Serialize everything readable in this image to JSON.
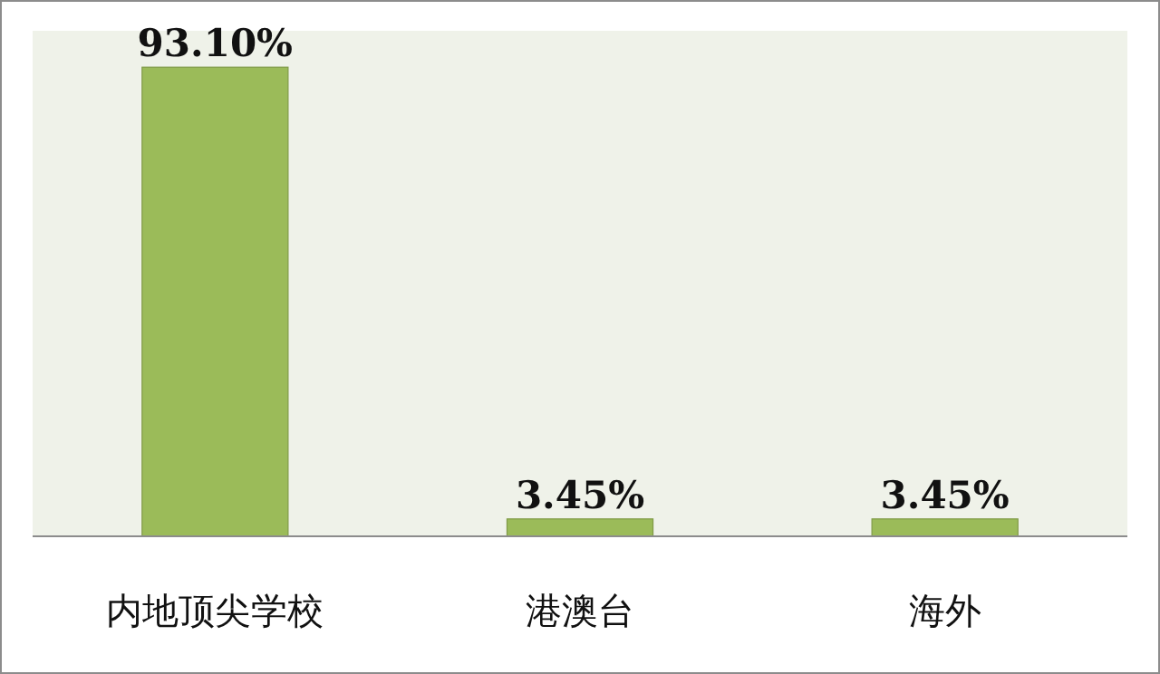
{
  "chart_data": {
    "type": "bar",
    "categories": [
      "内地顶尖学校",
      "港澳台",
      "海外"
    ],
    "values": [
      93.1,
      3.45,
      3.45
    ],
    "value_labels": [
      "93.10%",
      "3.45%",
      "3.45%"
    ],
    "color": "#9bbb59"
  }
}
